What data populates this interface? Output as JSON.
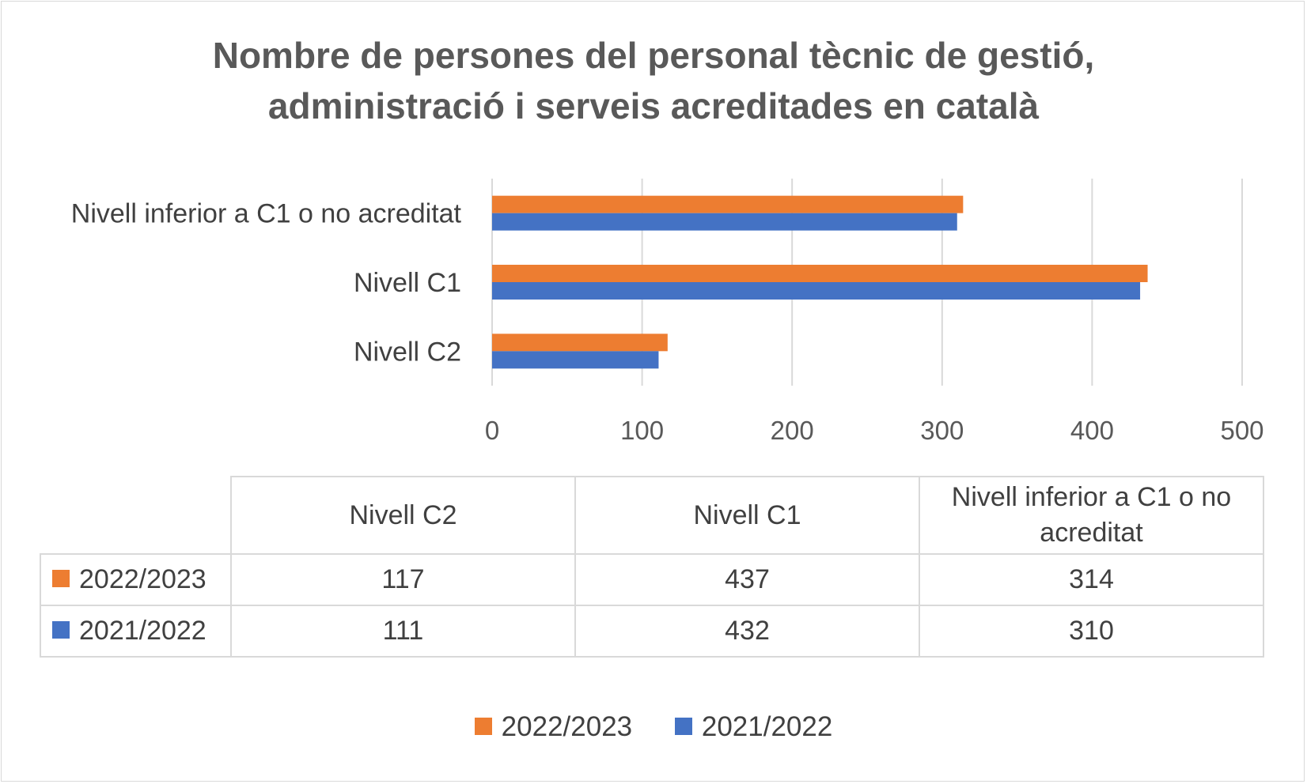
{
  "chart_data": {
    "type": "bar",
    "orientation": "horizontal",
    "title_lines": [
      "Nombre de persones del personal tècnic de gestió,",
      "administració i serveis acreditades en català"
    ],
    "categories": [
      "Nivell C2",
      "Nivell C1",
      "Nivell inferior a C1 o no acreditat"
    ],
    "series": [
      {
        "name": "2022/2023",
        "values": [
          117,
          437,
          314
        ],
        "color": "#ED7D31"
      },
      {
        "name": "2021/2022",
        "values": [
          111,
          432,
          310
        ],
        "color": "#4472C4"
      }
    ],
    "xlim": [
      0,
      500
    ],
    "x_ticks": [
      0,
      100,
      200,
      300,
      400,
      500
    ],
    "grid": true,
    "legend_position": "bottom",
    "data_table": {
      "header": [
        "Nivell C2",
        "Nivell C1",
        "Nivell inferior a C1 o no acreditat"
      ],
      "header_lines": [
        [
          "Nivell C2"
        ],
        [
          "Nivell C1"
        ],
        [
          "Nivell inferior a C1 o no",
          "acreditat"
        ]
      ],
      "rows": [
        {
          "name": "2022/2023",
          "values": [
            "117",
            "437",
            "314"
          ]
        },
        {
          "name": "2021/2022",
          "values": [
            "111",
            "432",
            "310"
          ]
        }
      ]
    }
  }
}
